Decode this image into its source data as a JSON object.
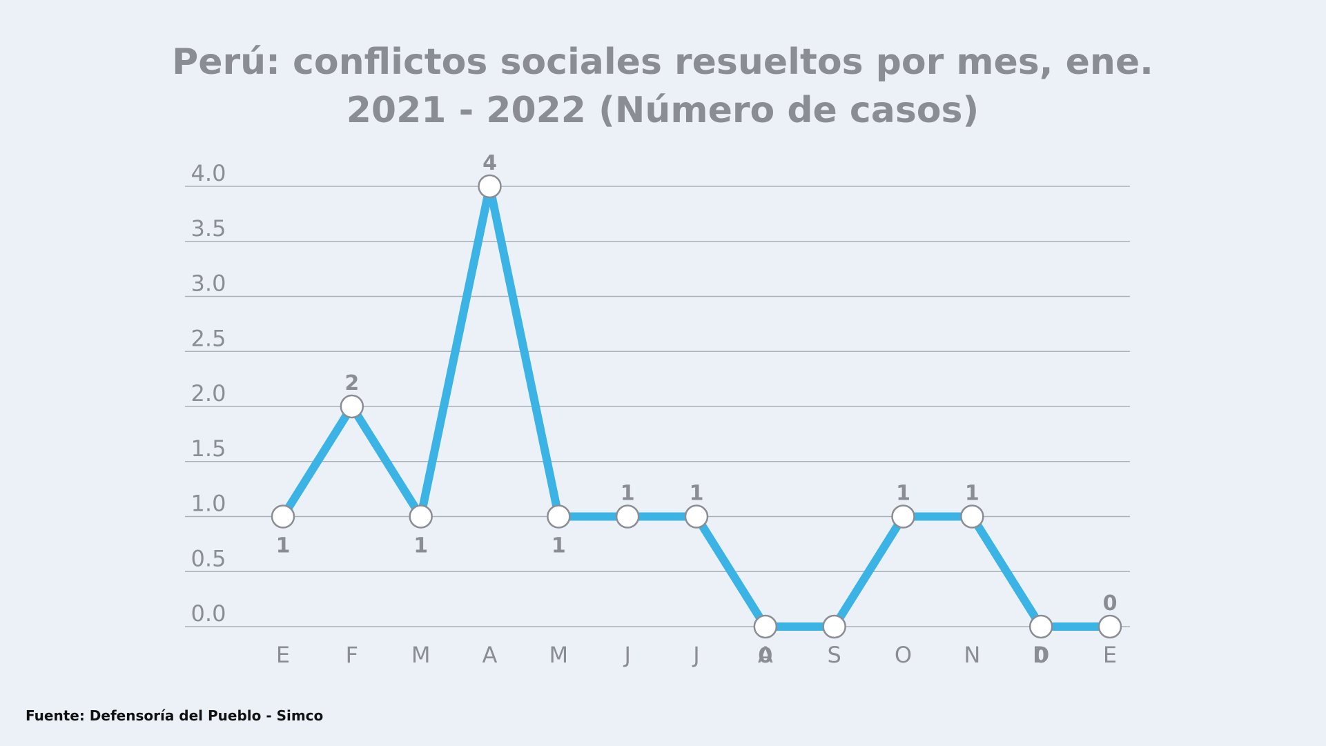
{
  "page": {
    "background": "#ecf1f8"
  },
  "chart_data": {
    "type": "line",
    "title_lines": [
      "Perú: conflictos sociales resueltos por mes, ene.",
      "2021 - 2022 (Número de casos)"
    ],
    "categories": [
      "E",
      "F",
      "M",
      "A",
      "M",
      "J",
      "J",
      "A",
      "S",
      "O",
      "N",
      "D",
      "E"
    ],
    "series": [
      {
        "values": [
          1,
          2,
          1,
          4,
          1,
          1,
          1,
          0,
          0,
          1,
          1,
          0,
          0
        ],
        "color": "#3bb4e5"
      }
    ],
    "data_labels": [
      "1",
      "2",
      "1",
      "4",
      "1",
      "1",
      "1",
      "0",
      "",
      "1",
      "1",
      "0",
      "0"
    ],
    "y_ticks": [
      "0.0",
      "0.5",
      "1.0",
      "1.5",
      "2.0",
      "2.5",
      "3.0",
      "3.5",
      "4.0"
    ],
    "ylim": [
      0,
      4
    ],
    "grid": true,
    "colors": {
      "line": "#3bb4e5",
      "marker_fill": "#ffffff",
      "marker_stroke": "#8a8d93",
      "text": "#8a8d93",
      "grid": "#aab0b8"
    }
  },
  "footer": {
    "source": "Fuente: Defensoría del Pueblo - Simco"
  }
}
